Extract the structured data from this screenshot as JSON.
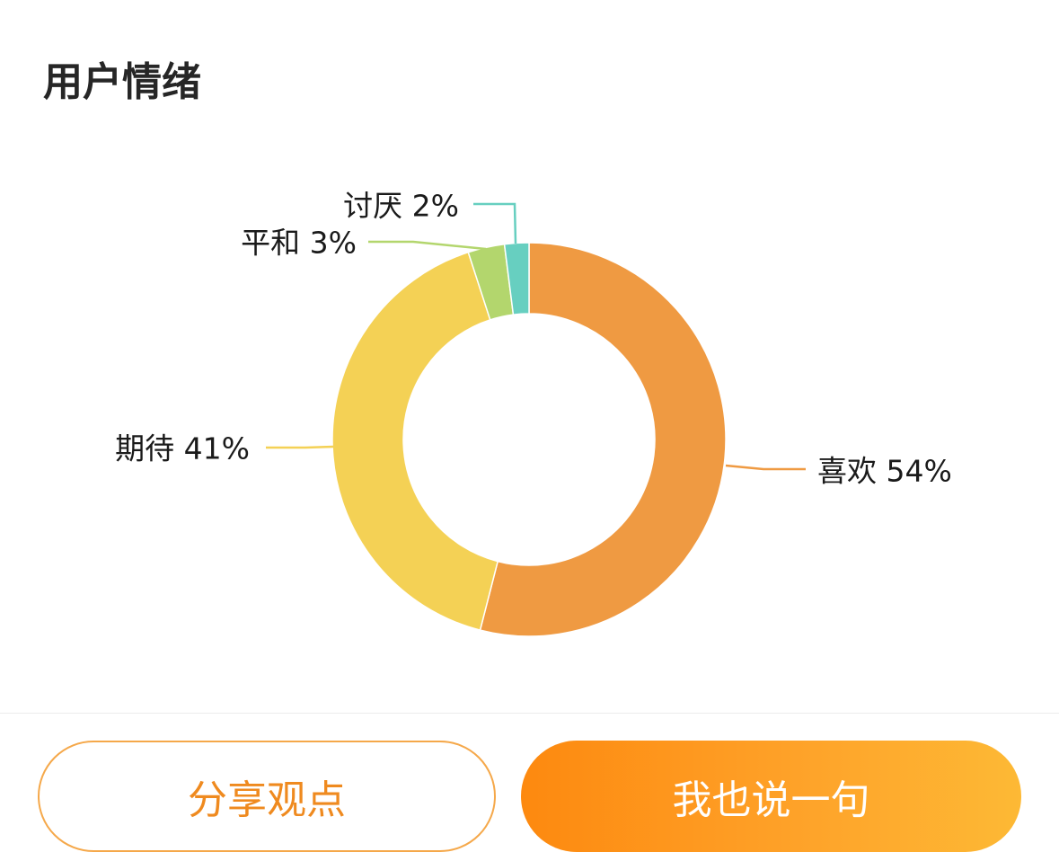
{
  "section": {
    "title": "用户情绪"
  },
  "chart_data": {
    "type": "pie",
    "variant": "donut",
    "title": "",
    "start_angle": "12 o'clock",
    "direction": "clockwise",
    "slices": [
      {
        "label": "喜欢 54%",
        "name": "喜欢",
        "value": 54,
        "color": "#ef9a42"
      },
      {
        "label": "期待 41%",
        "name": "期待",
        "value": 41,
        "color": "#f4d155"
      },
      {
        "label": "平和 3%",
        "name": "平和",
        "value": 3,
        "color": "#b3d66d"
      },
      {
        "label": "讨厌 2%",
        "name": "讨厌",
        "value": 2,
        "color": "#67cfc0"
      }
    ]
  },
  "actions": {
    "share_label": "分享观点",
    "say_label": "我也说一句"
  },
  "colors": {
    "accent": "#fd890f",
    "share_border": "#f5a84a",
    "share_text": "#ef8a1f"
  }
}
